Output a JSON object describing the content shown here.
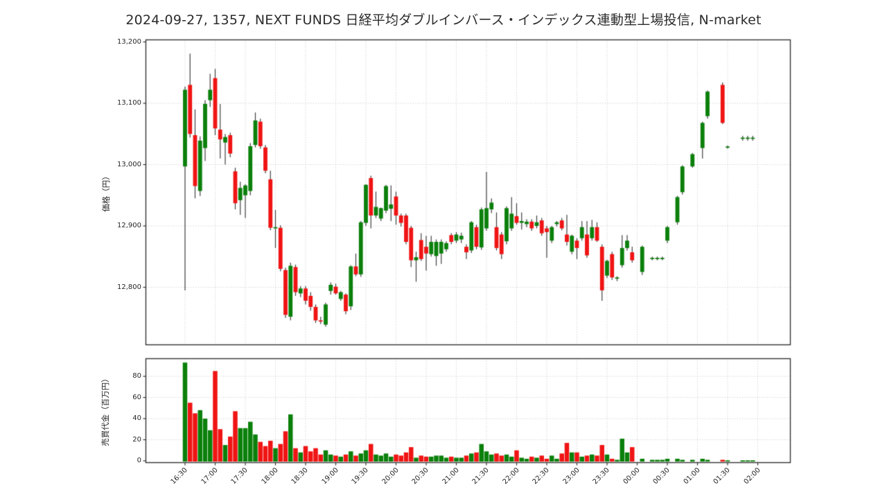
{
  "title": {
    "text": "2024-09-27, 1357, NEXT FUNDS 日経平均ダブルインバース・インデックス連動型上場投信, N-market"
  },
  "price_axis": {
    "label": "価格（円）",
    "ticks": [
      {
        "label": "13,200",
        "value": 13200
      },
      {
        "label": "13,100",
        "value": 13100
      },
      {
        "label": "13,000",
        "value": 13000
      },
      {
        "label": "12,900",
        "value": 12900
      },
      {
        "label": "12,800",
        "value": 12800
      }
    ]
  },
  "volume_axis": {
    "label": "売買代金（百万円）",
    "ticks": [
      {
        "label": "80",
        "value": 80
      },
      {
        "label": "60",
        "value": 60
      },
      {
        "label": "40",
        "value": 40
      },
      {
        "label": "20",
        "value": 20
      },
      {
        "label": "0",
        "value": 0
      }
    ]
  },
  "colors": {
    "up": "#0b800b",
    "down": "#f01414",
    "wick": "#3f3f3f",
    "grid": "#c4c4c4",
    "spine": "#333333",
    "text": "#262626",
    "background": "#ffffff"
  },
  "chart_data": {
    "type": "candlestick_with_volume",
    "title": "2024-09-27, 1357, NEXT FUNDS 日経平均ダブルインバース・インデックス連動型上場投信, N-market",
    "ylabel": "価格（円）",
    "ylabel_volume": "売買代金（百万円）",
    "session_start": "16:30",
    "interval_minutes": 5,
    "price_ylim": [
      12707,
      13204
    ],
    "volume_ylim": [
      0,
      97
    ],
    "grid": "dotted",
    "x_tick_labels": [
      "16:30",
      "17:00",
      "17:30",
      "18:00",
      "18:30",
      "19:00",
      "19:30",
      "20:00",
      "20:30",
      "21:00",
      "21:30",
      "22:00",
      "22:30",
      "23:00",
      "23:30",
      "00:00",
      "00:30",
      "01:00",
      "01:30",
      "02:00"
    ],
    "candles_format": [
      "open",
      "high",
      "low",
      "close",
      "volume_mil_yen",
      "direction"
    ],
    "candles": [
      [
        12997,
        13127,
        12795,
        13122,
        93,
        "g"
      ],
      [
        13130,
        13181,
        13044,
        13050,
        55,
        "r"
      ],
      [
        13048,
        13090,
        12945,
        12965,
        45,
        "r"
      ],
      [
        12957,
        13046,
        12949,
        13039,
        48,
        "g"
      ],
      [
        13027,
        13105,
        13006,
        13099,
        40,
        "g"
      ],
      [
        13105,
        13148,
        13094,
        13122,
        29,
        "g"
      ],
      [
        13141,
        13156,
        13048,
        13059,
        85,
        "r"
      ],
      [
        13057,
        13099,
        13010,
        13041,
        30,
        "r"
      ],
      [
        13036,
        13050,
        13000,
        13045,
        15,
        "g"
      ],
      [
        13048,
        13052,
        13012,
        13018,
        23,
        "r"
      ],
      [
        12989,
        12995,
        12927,
        12937,
        47,
        "r"
      ],
      [
        12942,
        12972,
        12918,
        12962,
        31,
        "g"
      ],
      [
        12950,
        12968,
        12913,
        12966,
        31,
        "g"
      ],
      [
        12957,
        13035,
        12950,
        13030,
        37,
        "g"
      ],
      [
        13032,
        13085,
        13028,
        13072,
        25,
        "g"
      ],
      [
        13070,
        13075,
        13026,
        13030,
        18,
        "r"
      ],
      [
        13028,
        13032,
        12986,
        12990,
        14,
        "r"
      ],
      [
        12976,
        12990,
        12893,
        12897,
        19,
        "r"
      ],
      [
        12896,
        12926,
        12864,
        12898,
        12,
        "g"
      ],
      [
        12897,
        12901,
        12826,
        12830,
        16,
        "r"
      ],
      [
        12828,
        12832,
        12750,
        12755,
        28,
        "r"
      ],
      [
        12752,
        12840,
        12746,
        12835,
        44,
        "g"
      ],
      [
        12833,
        12837,
        12786,
        12792,
        12,
        "r"
      ],
      [
        12790,
        12802,
        12784,
        12798,
        8,
        "g"
      ],
      [
        12798,
        12802,
        12772,
        12778,
        14,
        "r"
      ],
      [
        12786,
        12792,
        12762,
        12768,
        9,
        "r"
      ],
      [
        12768,
        12772,
        12742,
        12746,
        12,
        "r"
      ],
      [
        12746,
        12752,
        12740,
        12744,
        6,
        "r"
      ],
      [
        12739,
        12775,
        12736,
        12772,
        10,
        "g"
      ],
      [
        12794,
        12808,
        12788,
        12804,
        6,
        "g"
      ],
      [
        12801,
        12806,
        12788,
        12790,
        5,
        "r"
      ],
      [
        12781,
        12794,
        12778,
        12792,
        4,
        "g"
      ],
      [
        12788,
        12790,
        12756,
        12761,
        6,
        "r"
      ],
      [
        12769,
        12836,
        12763,
        12834,
        9,
        "g"
      ],
      [
        12834,
        12855,
        12818,
        12821,
        5,
        "r"
      ],
      [
        12821,
        12908,
        12817,
        12906,
        7,
        "g"
      ],
      [
        12905,
        12968,
        12900,
        12967,
        10,
        "g"
      ],
      [
        12978,
        12982,
        12896,
        12917,
        16,
        "r"
      ],
      [
        12917,
        12956,
        12913,
        12931,
        6,
        "g"
      ],
      [
        12912,
        12930,
        12908,
        12929,
        5,
        "g"
      ],
      [
        12925,
        12967,
        12921,
        12965,
        7,
        "g"
      ],
      [
        12928,
        12966,
        12908,
        12935,
        4,
        "g"
      ],
      [
        12948,
        12956,
        12902,
        12917,
        6,
        "r"
      ],
      [
        12917,
        12920,
        12899,
        12905,
        5,
        "r"
      ],
      [
        12917,
        12920,
        12870,
        12874,
        8,
        "r"
      ],
      [
        12897,
        12900,
        12833,
        12844,
        13,
        "r"
      ],
      [
        12844,
        12858,
        12809,
        12849,
        3,
        "g"
      ],
      [
        12877,
        12888,
        12843,
        12846,
        5,
        "r"
      ],
      [
        12866,
        12884,
        12827,
        12855,
        4,
        "r"
      ],
      [
        12854,
        12884,
        12850,
        12874,
        4,
        "g"
      ],
      [
        12851,
        12878,
        12835,
        12874,
        5,
        "g"
      ],
      [
        12855,
        12878,
        12838,
        12874,
        5,
        "g"
      ],
      [
        12862,
        12875,
        12858,
        12872,
        3,
        "g"
      ],
      [
        12885,
        12888,
        12870,
        12874,
        4,
        "r"
      ],
      [
        12876,
        12890,
        12872,
        12886,
        3,
        "g"
      ],
      [
        12878,
        12889,
        12872,
        12884,
        3,
        "g"
      ],
      [
        12866,
        12870,
        12846,
        12857,
        5,
        "r"
      ],
      [
        12860,
        12908,
        12856,
        12906,
        7,
        "g"
      ],
      [
        12898,
        12902,
        12862,
        12866,
        8,
        "r"
      ],
      [
        12865,
        12930,
        12861,
        12927,
        16,
        "g"
      ],
      [
        12896,
        12988,
        12892,
        12929,
        9,
        "g"
      ],
      [
        12927,
        12945,
        12921,
        12938,
        6,
        "g"
      ],
      [
        12898,
        12922,
        12860,
        12864,
        7,
        "r"
      ],
      [
        12886,
        12890,
        12846,
        12854,
        5,
        "r"
      ],
      [
        12875,
        12932,
        12870,
        12929,
        6,
        "g"
      ],
      [
        12896,
        12947,
        12892,
        12920,
        4,
        "g"
      ],
      [
        12916,
        12937,
        12902,
        12905,
        10,
        "r"
      ],
      [
        12905,
        12922,
        12894,
        12908,
        3,
        "g"
      ],
      [
        12903,
        12911,
        12898,
        12907,
        2,
        "g"
      ],
      [
        12907,
        12911,
        12892,
        12896,
        4,
        "r"
      ],
      [
        12900,
        12917,
        12896,
        12906,
        3,
        "g"
      ],
      [
        12909,
        12913,
        12884,
        12888,
        5,
        "r"
      ],
      [
        12896,
        12900,
        12848,
        12890,
        2,
        "r"
      ],
      [
        12876,
        12900,
        12872,
        12898,
        5,
        "g"
      ],
      [
        12903,
        12908,
        12899,
        12906,
        2,
        "g"
      ],
      [
        12909,
        12913,
        12893,
        12896,
        7,
        "r"
      ],
      [
        12886,
        12918,
        12868,
        12874,
        17,
        "r"
      ],
      [
        12858,
        12886,
        12854,
        12884,
        8,
        "g"
      ],
      [
        12876,
        12880,
        12846,
        12864,
        8,
        "r"
      ],
      [
        12880,
        12908,
        12876,
        12898,
        4,
        "g"
      ],
      [
        12886,
        12908,
        12848,
        12852,
        5,
        "r"
      ],
      [
        12880,
        12910,
        12876,
        12898,
        6,
        "g"
      ],
      [
        12898,
        12906,
        12874,
        12876,
        5,
        "r"
      ],
      [
        12866,
        12870,
        12778,
        12795,
        15,
        "r"
      ],
      [
        12819,
        12845,
        12815,
        12843,
        6,
        "g"
      ],
      [
        12854,
        12858,
        12812,
        12816,
        2,
        "r"
      ],
      [
        12815,
        12818,
        12810,
        12815,
        1,
        "g"
      ],
      [
        12836,
        12885,
        12832,
        12864,
        21,
        "g"
      ],
      [
        12864,
        12885,
        12860,
        12876,
        8,
        "g"
      ],
      [
        12857,
        12866,
        12840,
        12844,
        13,
        "r"
      ],
      null,
      [
        12825,
        12868,
        12820,
        12866,
        2,
        "g"
      ],
      null,
      [
        12846,
        12850,
        12844,
        12848,
        1,
        "g"
      ],
      [
        12846,
        12850,
        12844,
        12848,
        1,
        "g"
      ],
      [
        12846,
        12850,
        12844,
        12848,
        1,
        "g"
      ],
      [
        12876,
        12900,
        12872,
        12898,
        2,
        "g"
      ],
      null,
      [
        12906,
        12949,
        12902,
        12947,
        2,
        "g"
      ],
      [
        12955,
        12999,
        12951,
        12997,
        1,
        "g"
      ],
      null,
      [
        12997,
        13019,
        12995,
        13017,
        1,
        "g"
      ],
      null,
      [
        13027,
        13070,
        13010,
        13068,
        2,
        "g"
      ],
      [
        13079,
        13121,
        13075,
        13119,
        1,
        "g"
      ],
      null,
      null,
      [
        13130,
        13134,
        13066,
        13068,
        1,
        "r"
      ],
      [
        13028,
        13031,
        13026,
        13029,
        0.5,
        "g"
      ],
      null,
      null,
      [
        13042,
        13047,
        13039,
        13044,
        0.5,
        "g"
      ],
      [
        13042,
        13047,
        13039,
        13044,
        0.5,
        "g"
      ],
      [
        13042,
        13047,
        13039,
        13044,
        0.5,
        "g"
      ]
    ]
  }
}
